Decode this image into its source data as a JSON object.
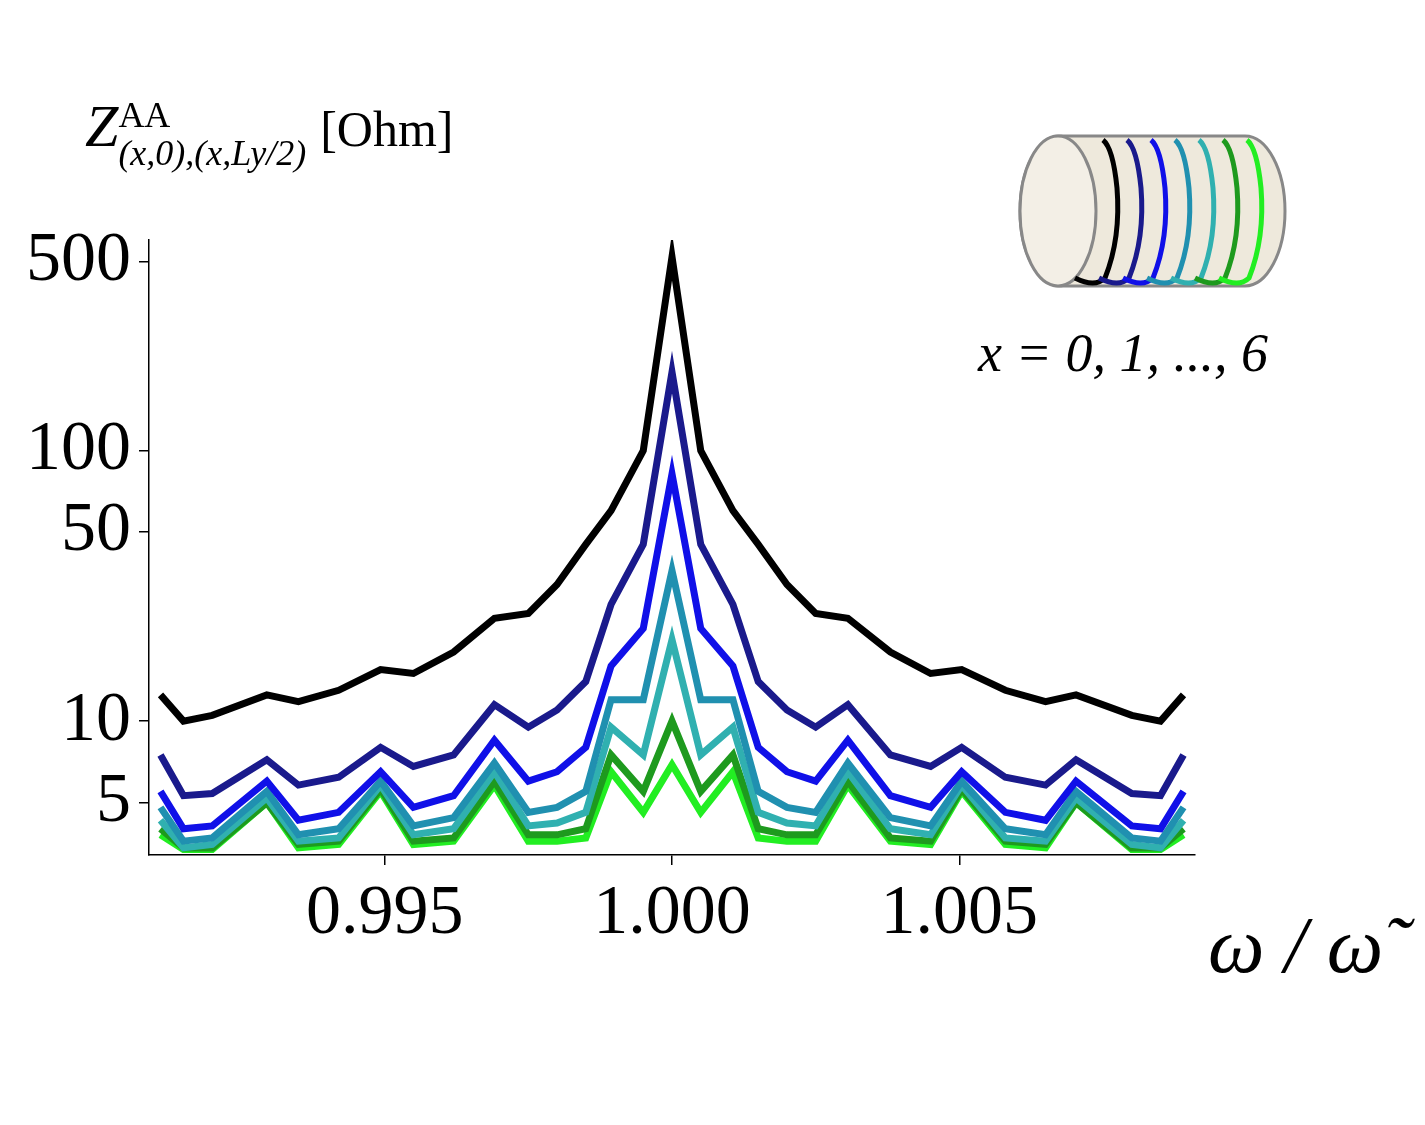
{
  "chart_data": {
    "type": "line",
    "y_label": {
      "text": "Z",
      "superscript": "AA",
      "subscript": "(x,0),(x,Ly/2)",
      "unit": "[Ohm]"
    },
    "x_label": "ω / ω̃",
    "annotations": [
      "x = 0, 1, ..., 6"
    ],
    "log": "y",
    "grid": false,
    "xlim": [
      0.9909,
      1.0091
    ],
    "xticks": [
      0.995,
      {
        "value": 1,
        "label": "1.000"
      },
      1.005
    ],
    "ylim": [
      3.2,
      600
    ],
    "yticks": [
      5,
      10,
      50,
      100,
      500
    ],
    "x": [
      0.9911,
      0.9915,
      0.992,
      0.99295,
      0.9935,
      0.9942,
      0.99493,
      0.9955,
      0.9962,
      0.99691,
      0.9975,
      0.998,
      0.9985,
      0.99894,
      0.9995,
      1.0,
      1.0005,
      1.00106,
      1.0015,
      1.002,
      1.0025,
      1.00306,
      1.0038,
      1.0045,
      1.00504,
      1.0058,
      1.0065,
      1.00703,
      1.008,
      1.0085,
      1.0089
    ],
    "series": [
      {
        "color": "#000000",
        "values": [
          12.5,
          10,
          10.5,
          12.5,
          11.8,
          13,
          15.5,
          15,
          18,
          24,
          25,
          32,
          45,
          60,
          100,
          520,
          100,
          60,
          45,
          32,
          25,
          24,
          18,
          15,
          15.5,
          13,
          11.8,
          12.5,
          10.5,
          10,
          12.5
        ]
      },
      {
        "color": "#1a1a8c",
        "values": [
          7.5,
          5.3,
          5.4,
          7.2,
          5.8,
          6.2,
          8,
          6.8,
          7.5,
          11.5,
          9.5,
          11,
          14,
          27,
          45,
          195,
          45,
          27,
          14,
          11,
          9.5,
          11.5,
          7.5,
          6.8,
          8,
          6.2,
          5.8,
          7.2,
          5.4,
          5.3,
          7.5
        ]
      },
      {
        "color": "#1010e8",
        "values": [
          5.5,
          4,
          4.1,
          6,
          4.3,
          4.6,
          6.5,
          4.8,
          5.3,
          8.5,
          6,
          6.5,
          8,
          16,
          22,
          82,
          22,
          16,
          8,
          6.5,
          6,
          8.5,
          5.3,
          4.8,
          6.5,
          4.6,
          4.3,
          6,
          4.1,
          4,
          5.5
        ]
      },
      {
        "color": "#2090b0",
        "values": [
          4.8,
          3.6,
          3.7,
          5.5,
          3.8,
          4,
          6,
          4.1,
          4.4,
          7,
          4.6,
          4.8,
          5.5,
          12,
          12,
          36,
          12,
          12,
          5.5,
          4.8,
          4.6,
          7,
          4.4,
          4.1,
          6,
          4,
          3.8,
          5.5,
          3.7,
          3.6,
          4.8
        ]
      },
      {
        "color": "#30b0b0",
        "values": [
          4.3,
          3.4,
          3.5,
          5.2,
          3.6,
          3.7,
          5.8,
          3.8,
          4,
          6.5,
          4.1,
          4.2,
          4.6,
          9.5,
          7.5,
          20,
          7.5,
          9.5,
          4.6,
          4.2,
          4.1,
          6.5,
          4,
          3.8,
          5.8,
          3.7,
          3.6,
          5.2,
          3.5,
          3.4,
          4.3
        ]
      },
      {
        "color": "#1e9a1e",
        "values": [
          4,
          3.4,
          3.4,
          5,
          3.5,
          3.6,
          5.6,
          3.6,
          3.7,
          6,
          3.8,
          3.8,
          4,
          7.5,
          5.5,
          10,
          5.5,
          7.5,
          4,
          3.8,
          3.8,
          6,
          3.7,
          3.6,
          5.6,
          3.6,
          3.5,
          5,
          3.4,
          3.4,
          4
        ]
      },
      {
        "color": "#22ee22",
        "values": [
          3.8,
          3.35,
          3.35,
          5,
          3.4,
          3.5,
          5.5,
          3.5,
          3.6,
          5.8,
          3.6,
          3.6,
          3.7,
          6.5,
          4.6,
          6.9,
          4.6,
          6.5,
          3.7,
          3.6,
          3.6,
          5.8,
          3.6,
          3.5,
          5.5,
          3.5,
          3.4,
          5,
          3.35,
          3.35,
          3.8
        ]
      }
    ]
  }
}
